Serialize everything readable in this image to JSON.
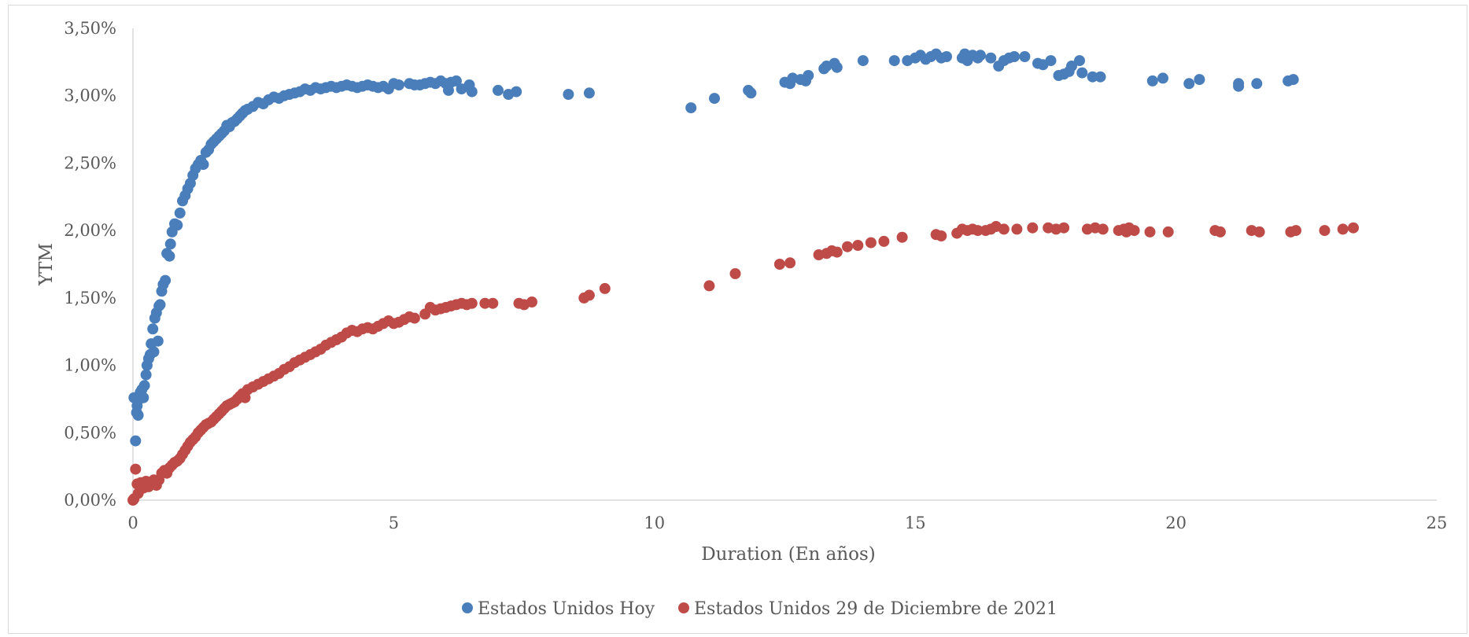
{
  "chart_data": {
    "type": "scatter",
    "title": "",
    "xlabel": "Duration (En años)",
    "ylabel": "YTM",
    "xlim": [
      0,
      25
    ],
    "ylim": [
      0,
      0.035
    ],
    "x_ticks": [
      0,
      5,
      10,
      15,
      20,
      25
    ],
    "x_tick_labels": [
      "0",
      "5",
      "10",
      "15",
      "20",
      "25"
    ],
    "y_ticks": [
      0,
      0.005,
      0.01,
      0.015,
      0.02,
      0.025,
      0.03,
      0.035
    ],
    "y_tick_labels": [
      "0,00%",
      "0,50%",
      "1,00%",
      "1,50%",
      "2,00%",
      "2,50%",
      "3,00%",
      "3,50%"
    ],
    "grid": false,
    "legend_position": "bottom",
    "series": [
      {
        "name": "Estados Unidos Hoy",
        "color": "#4a7ebb",
        "points": [
          [
            0.02,
            0.0076
          ],
          [
            0.05,
            0.0044
          ],
          [
            0.07,
            0.0065
          ],
          [
            0.08,
            0.007
          ],
          [
            0.1,
            0.0063
          ],
          [
            0.12,
            0.0075
          ],
          [
            0.14,
            0.008
          ],
          [
            0.17,
            0.0082
          ],
          [
            0.2,
            0.0076
          ],
          [
            0.22,
            0.0085
          ],
          [
            0.25,
            0.0093
          ],
          [
            0.27,
            0.01
          ],
          [
            0.3,
            0.0105
          ],
          [
            0.33,
            0.0108
          ],
          [
            0.35,
            0.0116
          ],
          [
            0.38,
            0.0127
          ],
          [
            0.4,
            0.011
          ],
          [
            0.42,
            0.0135
          ],
          [
            0.45,
            0.0139
          ],
          [
            0.48,
            0.0118
          ],
          [
            0.5,
            0.0144
          ],
          [
            0.52,
            0.0145
          ],
          [
            0.55,
            0.0155
          ],
          [
            0.58,
            0.016
          ],
          [
            0.62,
            0.0163
          ],
          [
            0.65,
            0.0183
          ],
          [
            0.7,
            0.0181
          ],
          [
            0.72,
            0.019
          ],
          [
            0.75,
            0.0199
          ],
          [
            0.8,
            0.0205
          ],
          [
            0.85,
            0.0204
          ],
          [
            0.9,
            0.0213
          ],
          [
            0.95,
            0.0222
          ],
          [
            1.0,
            0.0226
          ],
          [
            1.05,
            0.0231
          ],
          [
            1.1,
            0.0235
          ],
          [
            1.15,
            0.0241
          ],
          [
            1.2,
            0.0246
          ],
          [
            1.25,
            0.0249
          ],
          [
            1.3,
            0.0252
          ],
          [
            1.35,
            0.0249
          ],
          [
            1.4,
            0.0258
          ],
          [
            1.45,
            0.026
          ],
          [
            1.5,
            0.0264
          ],
          [
            1.55,
            0.0266
          ],
          [
            1.6,
            0.0268
          ],
          [
            1.65,
            0.027
          ],
          [
            1.7,
            0.0272
          ],
          [
            1.75,
            0.0274
          ],
          [
            1.8,
            0.0278
          ],
          [
            1.85,
            0.0277
          ],
          [
            1.9,
            0.028
          ],
          [
            1.95,
            0.0281
          ],
          [
            2.0,
            0.0283
          ],
          [
            2.05,
            0.0285
          ],
          [
            2.1,
            0.0287
          ],
          [
            2.15,
            0.0289
          ],
          [
            2.2,
            0.029
          ],
          [
            2.3,
            0.0292
          ],
          [
            2.4,
            0.0295
          ],
          [
            2.5,
            0.0294
          ],
          [
            2.6,
            0.0297
          ],
          [
            2.7,
            0.0299
          ],
          [
            2.8,
            0.0298
          ],
          [
            2.9,
            0.03
          ],
          [
            3.0,
            0.0301
          ],
          [
            3.1,
            0.0302
          ],
          [
            3.2,
            0.0303
          ],
          [
            3.3,
            0.0305
          ],
          [
            3.4,
            0.0304
          ],
          [
            3.5,
            0.0306
          ],
          [
            3.6,
            0.0305
          ],
          [
            3.7,
            0.0306
          ],
          [
            3.8,
            0.0307
          ],
          [
            3.9,
            0.0306
          ],
          [
            4.0,
            0.0307
          ],
          [
            4.1,
            0.0308
          ],
          [
            4.2,
            0.0307
          ],
          [
            4.3,
            0.0306
          ],
          [
            4.4,
            0.0307
          ],
          [
            4.5,
            0.0308
          ],
          [
            4.6,
            0.0307
          ],
          [
            4.7,
            0.0306
          ],
          [
            4.8,
            0.0307
          ],
          [
            4.9,
            0.0305
          ],
          [
            5.0,
            0.0309
          ],
          [
            5.1,
            0.0308
          ],
          [
            5.3,
            0.0309
          ],
          [
            5.4,
            0.0308
          ],
          [
            5.5,
            0.0308
          ],
          [
            5.6,
            0.0309
          ],
          [
            5.7,
            0.031
          ],
          [
            5.8,
            0.0309
          ],
          [
            5.9,
            0.0311
          ],
          [
            6.0,
            0.0309
          ],
          [
            6.05,
            0.0304
          ],
          [
            6.1,
            0.031
          ],
          [
            6.2,
            0.0311
          ],
          [
            6.3,
            0.0305
          ],
          [
            6.45,
            0.0308
          ],
          [
            6.5,
            0.0303
          ],
          [
            7.0,
            0.0304
          ],
          [
            7.2,
            0.0301
          ],
          [
            7.35,
            0.0303
          ],
          [
            8.35,
            0.0301
          ],
          [
            8.75,
            0.0302
          ],
          [
            10.7,
            0.0291
          ],
          [
            11.15,
            0.0298
          ],
          [
            11.8,
            0.0304
          ],
          [
            11.85,
            0.0302
          ],
          [
            12.5,
            0.031
          ],
          [
            12.6,
            0.0309
          ],
          [
            12.65,
            0.0313
          ],
          [
            12.8,
            0.0312
          ],
          [
            12.9,
            0.0311
          ],
          [
            12.95,
            0.0315
          ],
          [
            13.25,
            0.032
          ],
          [
            13.3,
            0.0322
          ],
          [
            13.45,
            0.0324
          ],
          [
            13.5,
            0.0321
          ],
          [
            14.0,
            0.0326
          ],
          [
            14.6,
            0.0326
          ],
          [
            14.85,
            0.0326
          ],
          [
            15.0,
            0.0328
          ],
          [
            15.1,
            0.033
          ],
          [
            15.2,
            0.0327
          ],
          [
            15.3,
            0.0329
          ],
          [
            15.4,
            0.0331
          ],
          [
            15.5,
            0.0328
          ],
          [
            15.6,
            0.0329
          ],
          [
            15.9,
            0.0328
          ],
          [
            15.95,
            0.0331
          ],
          [
            16.0,
            0.0326
          ],
          [
            16.1,
            0.033
          ],
          [
            16.2,
            0.0328
          ],
          [
            16.25,
            0.033
          ],
          [
            16.45,
            0.0328
          ],
          [
            16.6,
            0.0322
          ],
          [
            16.7,
            0.0326
          ],
          [
            16.8,
            0.0328
          ],
          [
            16.9,
            0.0329
          ],
          [
            17.1,
            0.0329
          ],
          [
            17.35,
            0.0324
          ],
          [
            17.45,
            0.0323
          ],
          [
            17.6,
            0.0326
          ],
          [
            17.75,
            0.0315
          ],
          [
            17.85,
            0.0316
          ],
          [
            17.95,
            0.0318
          ],
          [
            18.0,
            0.0322
          ],
          [
            18.15,
            0.0326
          ],
          [
            18.2,
            0.0317
          ],
          [
            18.4,
            0.0314
          ],
          [
            18.55,
            0.0314
          ],
          [
            19.55,
            0.0311
          ],
          [
            19.75,
            0.0313
          ],
          [
            20.25,
            0.0309
          ],
          [
            20.45,
            0.0312
          ],
          [
            21.2,
            0.0307
          ],
          [
            21.2,
            0.0309
          ],
          [
            21.55,
            0.0309
          ],
          [
            22.15,
            0.0311
          ],
          [
            22.25,
            0.0312
          ]
        ]
      },
      {
        "name": "Estados Unidos 29 de Diciembre de 2021",
        "color": "#be4b48",
        "points": [
          [
            0.0,
            0.0
          ],
          [
            0.02,
            0.0001
          ],
          [
            0.05,
            0.0023
          ],
          [
            0.08,
            0.0012
          ],
          [
            0.1,
            0.0005
          ],
          [
            0.15,
            0.0013
          ],
          [
            0.2,
            0.0009
          ],
          [
            0.25,
            0.0014
          ],
          [
            0.3,
            0.001
          ],
          [
            0.35,
            0.0013
          ],
          [
            0.4,
            0.0015
          ],
          [
            0.45,
            0.0011
          ],
          [
            0.5,
            0.0015
          ],
          [
            0.55,
            0.002
          ],
          [
            0.6,
            0.0022
          ],
          [
            0.65,
            0.002
          ],
          [
            0.7,
            0.0024
          ],
          [
            0.75,
            0.0026
          ],
          [
            0.8,
            0.0028
          ],
          [
            0.85,
            0.0029
          ],
          [
            0.9,
            0.0031
          ],
          [
            0.95,
            0.0034
          ],
          [
            1.0,
            0.0037
          ],
          [
            1.05,
            0.004
          ],
          [
            1.1,
            0.0043
          ],
          [
            1.15,
            0.0045
          ],
          [
            1.2,
            0.0047
          ],
          [
            1.25,
            0.005
          ],
          [
            1.3,
            0.0052
          ],
          [
            1.35,
            0.0054
          ],
          [
            1.4,
            0.0056
          ],
          [
            1.45,
            0.0057
          ],
          [
            1.5,
            0.0058
          ],
          [
            1.55,
            0.006
          ],
          [
            1.6,
            0.0062
          ],
          [
            1.65,
            0.0064
          ],
          [
            1.7,
            0.0066
          ],
          [
            1.75,
            0.0068
          ],
          [
            1.8,
            0.007
          ],
          [
            1.85,
            0.0071
          ],
          [
            1.9,
            0.0072
          ],
          [
            1.95,
            0.0073
          ],
          [
            2.0,
            0.0075
          ],
          [
            2.05,
            0.0077
          ],
          [
            2.1,
            0.0079
          ],
          [
            2.15,
            0.0076
          ],
          [
            2.2,
            0.0082
          ],
          [
            2.3,
            0.0084
          ],
          [
            2.4,
            0.0086
          ],
          [
            2.5,
            0.0088
          ],
          [
            2.6,
            0.009
          ],
          [
            2.7,
            0.0092
          ],
          [
            2.8,
            0.0094
          ],
          [
            2.9,
            0.0097
          ],
          [
            3.0,
            0.0099
          ],
          [
            3.1,
            0.0102
          ],
          [
            3.2,
            0.0104
          ],
          [
            3.3,
            0.0106
          ],
          [
            3.4,
            0.0108
          ],
          [
            3.5,
            0.011
          ],
          [
            3.6,
            0.0112
          ],
          [
            3.7,
            0.0115
          ],
          [
            3.8,
            0.0117
          ],
          [
            3.9,
            0.0119
          ],
          [
            4.0,
            0.0121
          ],
          [
            4.1,
            0.0124
          ],
          [
            4.2,
            0.0126
          ],
          [
            4.3,
            0.0125
          ],
          [
            4.4,
            0.0127
          ],
          [
            4.5,
            0.0128
          ],
          [
            4.6,
            0.0127
          ],
          [
            4.7,
            0.0129
          ],
          [
            4.8,
            0.0131
          ],
          [
            4.9,
            0.0133
          ],
          [
            5.0,
            0.0131
          ],
          [
            5.1,
            0.0132
          ],
          [
            5.2,
            0.0134
          ],
          [
            5.3,
            0.0136
          ],
          [
            5.4,
            0.0135
          ],
          [
            5.6,
            0.0138
          ],
          [
            5.7,
            0.0143
          ],
          [
            5.8,
            0.0141
          ],
          [
            5.9,
            0.0142
          ],
          [
            6.0,
            0.0143
          ],
          [
            6.1,
            0.0144
          ],
          [
            6.2,
            0.0145
          ],
          [
            6.3,
            0.0146
          ],
          [
            6.4,
            0.0145
          ],
          [
            6.5,
            0.0146
          ],
          [
            6.75,
            0.0146
          ],
          [
            6.9,
            0.0146
          ],
          [
            7.4,
            0.0146
          ],
          [
            7.5,
            0.0145
          ],
          [
            7.65,
            0.0147
          ],
          [
            8.65,
            0.015
          ],
          [
            8.75,
            0.0152
          ],
          [
            9.05,
            0.0157
          ],
          [
            11.05,
            0.0159
          ],
          [
            11.55,
            0.0168
          ],
          [
            12.4,
            0.0175
          ],
          [
            12.6,
            0.0176
          ],
          [
            13.15,
            0.0182
          ],
          [
            13.3,
            0.0183
          ],
          [
            13.4,
            0.0185
          ],
          [
            13.5,
            0.0184
          ],
          [
            13.7,
            0.0188
          ],
          [
            13.9,
            0.0189
          ],
          [
            14.15,
            0.0191
          ],
          [
            14.4,
            0.0192
          ],
          [
            14.75,
            0.0195
          ],
          [
            15.4,
            0.0197
          ],
          [
            15.5,
            0.0196
          ],
          [
            15.8,
            0.0198
          ],
          [
            15.9,
            0.0201
          ],
          [
            16.0,
            0.02
          ],
          [
            16.1,
            0.0201
          ],
          [
            16.2,
            0.02
          ],
          [
            16.35,
            0.02
          ],
          [
            16.45,
            0.0201
          ],
          [
            16.55,
            0.0203
          ],
          [
            16.7,
            0.0201
          ],
          [
            16.95,
            0.0201
          ],
          [
            17.25,
            0.0202
          ],
          [
            17.55,
            0.0202
          ],
          [
            17.7,
            0.0201
          ],
          [
            17.85,
            0.0202
          ],
          [
            18.3,
            0.0201
          ],
          [
            18.45,
            0.0202
          ],
          [
            18.6,
            0.0201
          ],
          [
            18.9,
            0.02
          ],
          [
            19.0,
            0.0201
          ],
          [
            19.05,
            0.0199
          ],
          [
            19.1,
            0.0202
          ],
          [
            19.2,
            0.02
          ],
          [
            19.5,
            0.0199
          ],
          [
            19.85,
            0.0199
          ],
          [
            20.75,
            0.02
          ],
          [
            20.85,
            0.0199
          ],
          [
            21.45,
            0.02
          ],
          [
            21.6,
            0.0199
          ],
          [
            22.2,
            0.0199
          ],
          [
            22.3,
            0.02
          ],
          [
            22.85,
            0.02
          ],
          [
            23.2,
            0.0201
          ],
          [
            23.4,
            0.0202
          ]
        ]
      }
    ]
  }
}
